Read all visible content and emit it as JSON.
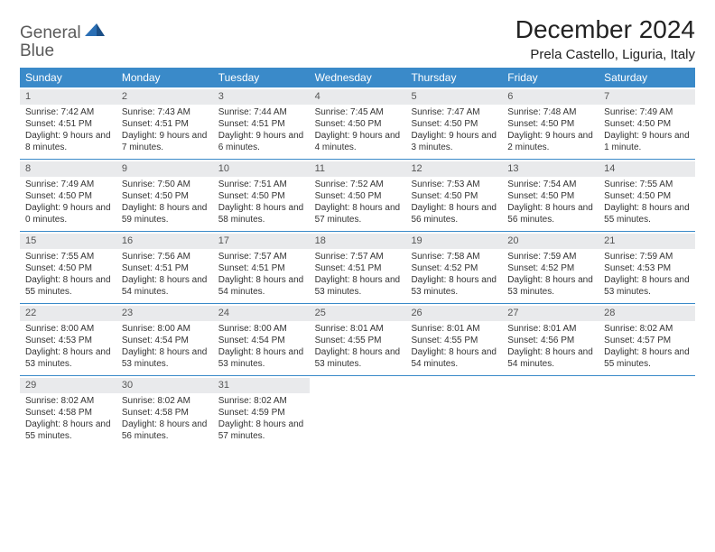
{
  "logo": {
    "word1": "General",
    "word2": "Blue"
  },
  "title": "December 2024",
  "location": "Prela Castello, Liguria, Italy",
  "colors": {
    "header_bar": "#3a8ac9",
    "daynum_bg": "#e9eaec",
    "rule": "#3a8ac9",
    "logo_gray": "#5a5a5a",
    "logo_blue": "#2a6fb5"
  },
  "dows": [
    "Sunday",
    "Monday",
    "Tuesday",
    "Wednesday",
    "Thursday",
    "Friday",
    "Saturday"
  ],
  "weeks": [
    [
      {
        "n": "1",
        "sr": "7:42 AM",
        "ss": "4:51 PM",
        "dh": "9",
        "dm": "8"
      },
      {
        "n": "2",
        "sr": "7:43 AM",
        "ss": "4:51 PM",
        "dh": "9",
        "dm": "7"
      },
      {
        "n": "3",
        "sr": "7:44 AM",
        "ss": "4:51 PM",
        "dh": "9",
        "dm": "6"
      },
      {
        "n": "4",
        "sr": "7:45 AM",
        "ss": "4:50 PM",
        "dh": "9",
        "dm": "4"
      },
      {
        "n": "5",
        "sr": "7:47 AM",
        "ss": "4:50 PM",
        "dh": "9",
        "dm": "3"
      },
      {
        "n": "6",
        "sr": "7:48 AM",
        "ss": "4:50 PM",
        "dh": "9",
        "dm": "2"
      },
      {
        "n": "7",
        "sr": "7:49 AM",
        "ss": "4:50 PM",
        "dh": "9",
        "dm": "1",
        "dm_suffix": "minute"
      }
    ],
    [
      {
        "n": "8",
        "sr": "7:49 AM",
        "ss": "4:50 PM",
        "dh": "9",
        "dm": "0"
      },
      {
        "n": "9",
        "sr": "7:50 AM",
        "ss": "4:50 PM",
        "dh": "8",
        "dm": "59"
      },
      {
        "n": "10",
        "sr": "7:51 AM",
        "ss": "4:50 PM",
        "dh": "8",
        "dm": "58"
      },
      {
        "n": "11",
        "sr": "7:52 AM",
        "ss": "4:50 PM",
        "dh": "8",
        "dm": "57"
      },
      {
        "n": "12",
        "sr": "7:53 AM",
        "ss": "4:50 PM",
        "dh": "8",
        "dm": "56"
      },
      {
        "n": "13",
        "sr": "7:54 AM",
        "ss": "4:50 PM",
        "dh": "8",
        "dm": "56"
      },
      {
        "n": "14",
        "sr": "7:55 AM",
        "ss": "4:50 PM",
        "dh": "8",
        "dm": "55"
      }
    ],
    [
      {
        "n": "15",
        "sr": "7:55 AM",
        "ss": "4:50 PM",
        "dh": "8",
        "dm": "55"
      },
      {
        "n": "16",
        "sr": "7:56 AM",
        "ss": "4:51 PM",
        "dh": "8",
        "dm": "54"
      },
      {
        "n": "17",
        "sr": "7:57 AM",
        "ss": "4:51 PM",
        "dh": "8",
        "dm": "54"
      },
      {
        "n": "18",
        "sr": "7:57 AM",
        "ss": "4:51 PM",
        "dh": "8",
        "dm": "53"
      },
      {
        "n": "19",
        "sr": "7:58 AM",
        "ss": "4:52 PM",
        "dh": "8",
        "dm": "53"
      },
      {
        "n": "20",
        "sr": "7:59 AM",
        "ss": "4:52 PM",
        "dh": "8",
        "dm": "53"
      },
      {
        "n": "21",
        "sr": "7:59 AM",
        "ss": "4:53 PM",
        "dh": "8",
        "dm": "53"
      }
    ],
    [
      {
        "n": "22",
        "sr": "8:00 AM",
        "ss": "4:53 PM",
        "dh": "8",
        "dm": "53"
      },
      {
        "n": "23",
        "sr": "8:00 AM",
        "ss": "4:54 PM",
        "dh": "8",
        "dm": "53"
      },
      {
        "n": "24",
        "sr": "8:00 AM",
        "ss": "4:54 PM",
        "dh": "8",
        "dm": "53"
      },
      {
        "n": "25",
        "sr": "8:01 AM",
        "ss": "4:55 PM",
        "dh": "8",
        "dm": "53"
      },
      {
        "n": "26",
        "sr": "8:01 AM",
        "ss": "4:55 PM",
        "dh": "8",
        "dm": "54"
      },
      {
        "n": "27",
        "sr": "8:01 AM",
        "ss": "4:56 PM",
        "dh": "8",
        "dm": "54"
      },
      {
        "n": "28",
        "sr": "8:02 AM",
        "ss": "4:57 PM",
        "dh": "8",
        "dm": "55"
      }
    ],
    [
      {
        "n": "29",
        "sr": "8:02 AM",
        "ss": "4:58 PM",
        "dh": "8",
        "dm": "55"
      },
      {
        "n": "30",
        "sr": "8:02 AM",
        "ss": "4:58 PM",
        "dh": "8",
        "dm": "56"
      },
      {
        "n": "31",
        "sr": "8:02 AM",
        "ss": "4:59 PM",
        "dh": "8",
        "dm": "57"
      },
      null,
      null,
      null,
      null
    ]
  ],
  "labels": {
    "sunrise": "Sunrise:",
    "sunset": "Sunset:",
    "daylight": "Daylight:",
    "hours": "hours",
    "and": "and",
    "minutes": "minutes."
  }
}
